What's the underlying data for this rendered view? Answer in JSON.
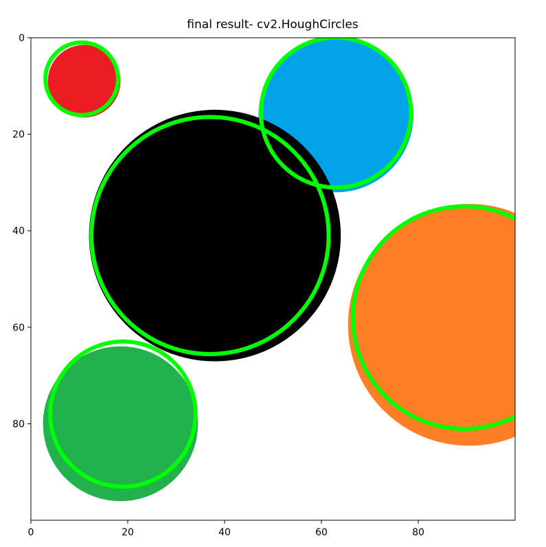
{
  "chart_data": {
    "type": "scatter",
    "title": "final result- cv2.HoughCircles",
    "xlabel": "",
    "ylabel": "",
    "xlim": [
      0,
      100
    ],
    "ylim": [
      100,
      0
    ],
    "x_ticks": [
      0,
      20,
      40,
      60,
      80
    ],
    "y_ticks": [
      0,
      20,
      40,
      60,
      80
    ],
    "grid": false,
    "colors": {
      "red": "#ed1c24",
      "blue": "#00a2e8",
      "black": "#000000",
      "orange": "#ff7f27",
      "green": "#22b14c",
      "detected": "#00ff00"
    },
    "circles": [
      {
        "fill": "red",
        "cx": 11,
        "cy": 9,
        "r": 7.5
      },
      {
        "fill": "blue",
        "cx": 63,
        "cy": 16,
        "r": 16
      },
      {
        "fill": "black",
        "cx": 38,
        "cy": 41,
        "r": 26
      },
      {
        "fill": "orange",
        "cx": 90.5,
        "cy": 59.5,
        "r": 25
      },
      {
        "fill": "green",
        "cx": 18.5,
        "cy": 80,
        "r": 16
      }
    ],
    "detected_circles": [
      {
        "cx": 10.5,
        "cy": 8.5,
        "r": 7.5
      },
      {
        "cx": 63,
        "cy": 15.5,
        "r": 15.5
      },
      {
        "cx": 37,
        "cy": 41,
        "r": 24.5
      },
      {
        "cx": 89.5,
        "cy": 58,
        "r": 23
      },
      {
        "cx": 19,
        "cy": 78,
        "r": 15
      }
    ]
  }
}
